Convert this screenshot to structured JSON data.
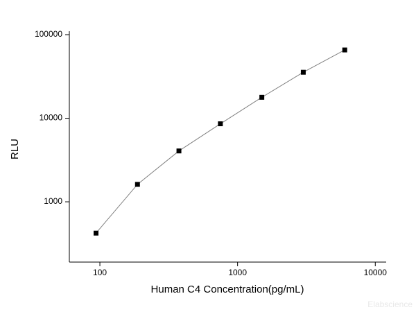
{
  "chart_data": {
    "type": "scatter-line",
    "xlabel": "Human C4 Concentration(pg/mL)",
    "ylabel": "RLU",
    "x": [
      93.75,
      187.5,
      375,
      750,
      1500,
      3000,
      6000
    ],
    "values": [
      422,
      1616,
      4060,
      8580,
      17800,
      35500,
      65600
    ],
    "color": "#000000",
    "line_color": "#808080",
    "xscale": "log",
    "yscale": "log",
    "xlim": [
      60,
      12000
    ],
    "ylim": [
      190,
      110000
    ],
    "xticks": [
      100,
      1000,
      10000
    ],
    "yticks": [
      1000,
      10000,
      100000
    ],
    "watermark": "Elabscience"
  }
}
